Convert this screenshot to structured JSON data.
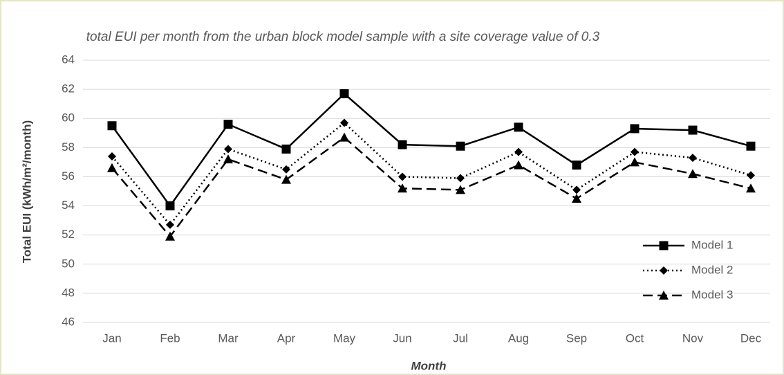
{
  "chart_data": {
    "type": "line",
    "title": "total EUI per month from the urban block model sample with a site coverage value of 0.3",
    "xlabel": "Month",
    "ylabel": "Total EUI (kWh/m²/month)",
    "categories": [
      "Jan",
      "Feb",
      "Mar",
      "Apr",
      "May",
      "Jun",
      "Jul",
      "Aug",
      "Sep",
      "Oct",
      "Nov",
      "Dec"
    ],
    "series": [
      {
        "name": "Model 1",
        "color": "#000000",
        "marker": "square",
        "dash": "solid",
        "values": [
          59.5,
          54.0,
          59.6,
          57.9,
          61.7,
          58.2,
          58.1,
          59.4,
          56.8,
          59.3,
          59.2,
          58.1
        ]
      },
      {
        "name": "Model 2",
        "color": "#000000",
        "marker": "diamond",
        "dash": "dotted",
        "values": [
          57.4,
          52.7,
          57.9,
          56.5,
          59.7,
          56.0,
          55.9,
          57.7,
          55.1,
          57.7,
          57.3,
          56.1
        ]
      },
      {
        "name": "Model 3",
        "color": "#000000",
        "marker": "triangle",
        "dash": "dashed",
        "values": [
          56.6,
          51.9,
          57.2,
          55.8,
          58.7,
          55.2,
          55.1,
          56.8,
          54.5,
          57.0,
          56.2,
          55.2
        ]
      }
    ],
    "ylim": [
      46,
      64
    ],
    "yticks": [
      46,
      48,
      50,
      52,
      54,
      56,
      58,
      60,
      62,
      64
    ],
    "grid": true,
    "legend": "lower right"
  }
}
